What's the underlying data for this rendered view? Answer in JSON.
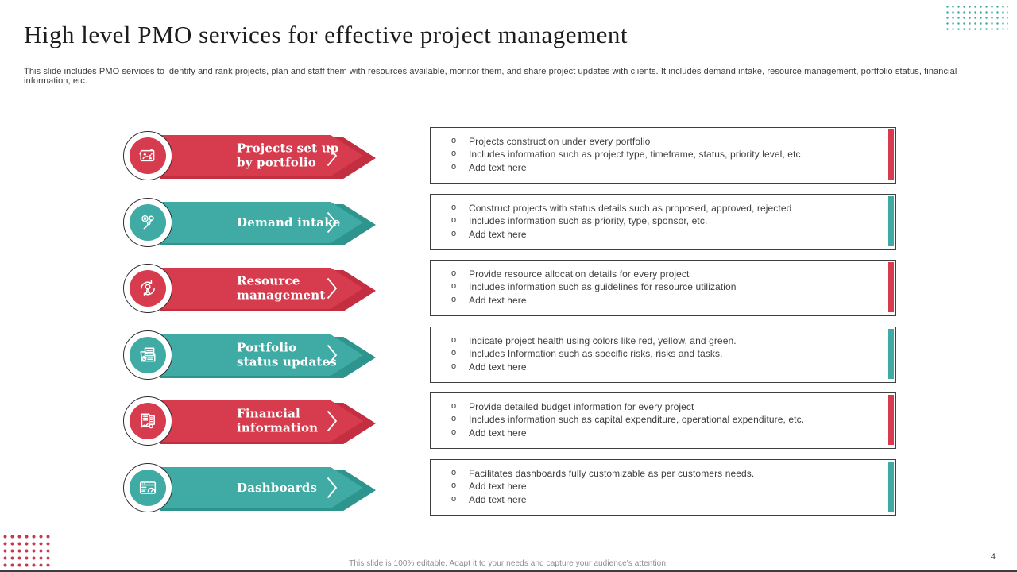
{
  "slide": {
    "title": "High level PMO services for effective project management",
    "subtitle": "This slide includes PMO  services to identify and rank projects, plan and staff them with resources available, monitor them,  and share project updates with clients. It includes demand intake,  resource management, portfolio status, financial information, etc.",
    "footer": "This slide is 100% editable. Adapt it to your needs and capture your audience's attention.",
    "page_number": "4"
  },
  "colors": {
    "red": "#D63C4E",
    "red_dark": "#C32F41",
    "teal": "#3FABA4",
    "teal_dark": "#2E948E",
    "box_border": "#3F3F3F",
    "dot_grid_teal": "#3FA9A2",
    "dot_grid_red": "#C53A4C"
  },
  "rows": [
    {
      "label": "Projects set up\nby portfolio",
      "color": "red",
      "icon": "strategy-plan-icon",
      "bullets": [
        "Projects construction under every portfolio",
        "Includes information such as project type, timeframe, status, priority level, etc.",
        "Add text here"
      ]
    },
    {
      "label": "Demand intake",
      "color": "teal",
      "icon": "demand-gears-icon",
      "bullets": [
        "Construct projects with status details such as proposed, approved, rejected",
        "Includes information such as priority, type, sponsor, etc.",
        "Add text here"
      ]
    },
    {
      "label": "Resource\nmanagement",
      "color": "red",
      "icon": "resource-cycle-icon",
      "bullets": [
        "Provide resource allocation details for every project",
        "Includes information such as guidelines for resource utilization",
        "Add text here"
      ]
    },
    {
      "label": "Portfolio\nstatus updates",
      "color": "teal",
      "icon": "portfolio-folder-icon",
      "bullets": [
        "Indicate project health using colors like red, yellow, and green.",
        "Includes Information such as specific risks, risks and tasks.",
        "Add text here"
      ]
    },
    {
      "label": "Financial\ninformation",
      "color": "red",
      "icon": "financial-ledger-icon",
      "bullets": [
        "Provide detailed budget information for every project",
        "Includes information such as capital expenditure, operational expenditure, etc.",
        "Add text here"
      ]
    },
    {
      "label": "Dashboards",
      "color": "teal",
      "icon": "dashboard-gauge-icon",
      "bullets": [
        "Facilitates dashboards fully customizable as per customers needs.",
        "Add text here",
        "Add text here"
      ]
    }
  ]
}
